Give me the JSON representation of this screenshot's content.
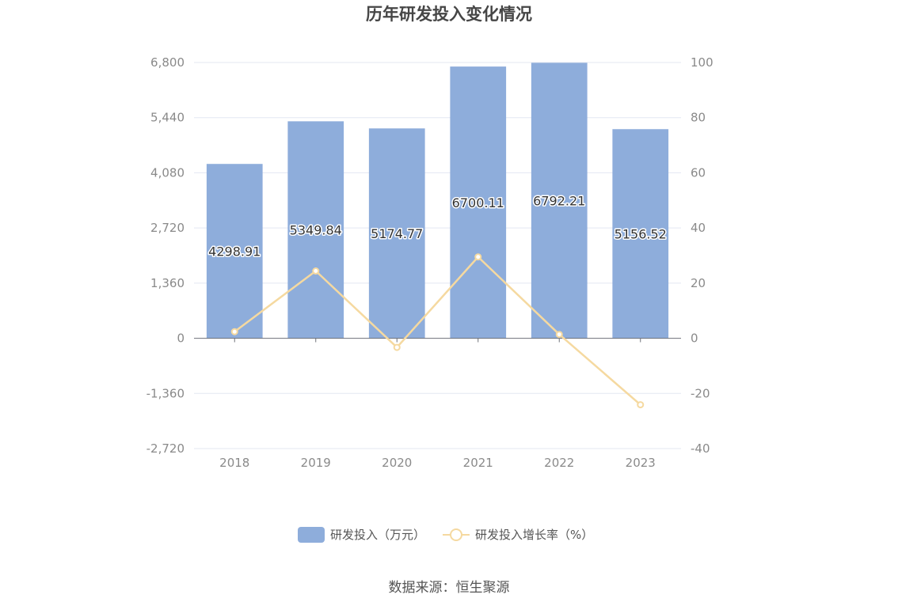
{
  "chart_data": {
    "type": "bar",
    "title": "历年研发投入变化情况",
    "categories": [
      "2018",
      "2019",
      "2020",
      "2021",
      "2022",
      "2023"
    ],
    "series": [
      {
        "name": "研发投入（万元）",
        "type": "bar",
        "axis": "left",
        "values": [
          4298.91,
          5349.84,
          5174.77,
          6700.11,
          6792.21,
          5156.52
        ],
        "value_labels": [
          "4298.91",
          "5349.84",
          "5174.77",
          "6700.11",
          "6792.21",
          "5156.52"
        ],
        "color": "#8eaddb"
      },
      {
        "name": "研发投入增长率（%）",
        "type": "line",
        "axis": "right",
        "values": [
          2.4,
          24.4,
          -3.3,
          29.5,
          1.4,
          -24.1
        ],
        "color": "#f5d9a0"
      }
    ],
    "y_left": {
      "ylim": [
        -2720,
        6800
      ],
      "ticks": [
        -2720,
        -1360,
        0,
        1360,
        2720,
        4080,
        5440,
        6800
      ],
      "tick_labels": [
        "-2,720",
        "-1,360",
        "0",
        "1,360",
        "2,720",
        "4,080",
        "5,440",
        "6,800"
      ]
    },
    "y_right": {
      "ylim": [
        -40,
        100
      ],
      "ticks": [
        -40,
        -20,
        0,
        20,
        40,
        60,
        80,
        100
      ],
      "tick_labels": [
        "-40",
        "-20",
        "0",
        "20",
        "40",
        "60",
        "80",
        "100"
      ]
    },
    "grid": true,
    "legend": "bottom-center"
  },
  "source": "数据来源：恒生聚源"
}
